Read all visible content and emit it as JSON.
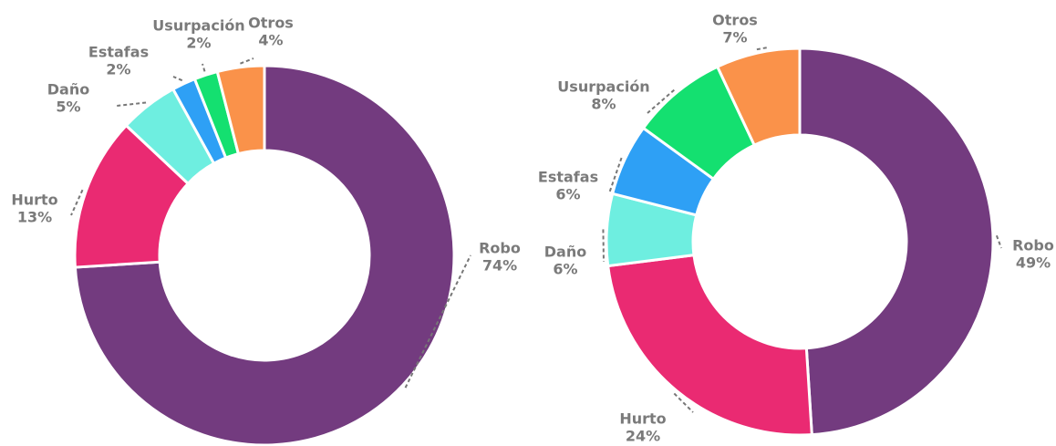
{
  "chart_data": [
    {
      "type": "donut",
      "categories": [
        "Robo",
        "Hurto",
        "Daño",
        "Estafas",
        "Usurpación",
        "Otros"
      ],
      "values": [
        74,
        13,
        5,
        2,
        2,
        4
      ],
      "value_labels": [
        "74%",
        "13%",
        "5%",
        "2%",
        "2%",
        "4%"
      ],
      "colors": [
        "#733b7f",
        "#ea2a72",
        "#6eeee0",
        "#2ea0f5",
        "#14e070",
        "#fa924a"
      ]
    },
    {
      "type": "donut",
      "categories": [
        "Robo",
        "Hurto",
        "Daño",
        "Estafas",
        "Usurpación",
        "Otros"
      ],
      "values": [
        49,
        24,
        6,
        6,
        8,
        7
      ],
      "value_labels": [
        "49%",
        "24%",
        "6%",
        "6%",
        "8%",
        "7%"
      ],
      "colors": [
        "#733b7f",
        "#ea2a72",
        "#6eeee0",
        "#2ea0f5",
        "#14e070",
        "#fa924a"
      ]
    }
  ]
}
